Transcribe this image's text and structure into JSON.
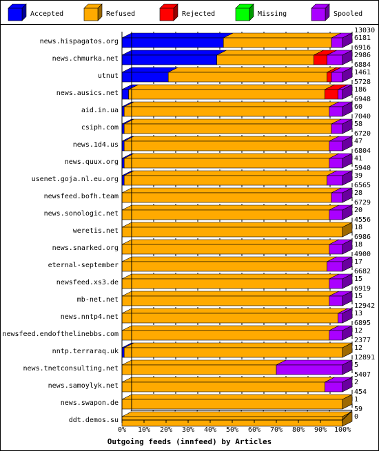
{
  "chart_data": {
    "type": "bar",
    "stacked": true,
    "orientation": "horizontal",
    "style": "3d",
    "xlabel": "Outgoing feeds (innfeed) by Articles",
    "x_ticks": [
      "0%",
      "10%",
      "20%",
      "30%",
      "40%",
      "50%",
      "60%",
      "70%",
      "80%",
      "90%",
      "100%"
    ],
    "legend_position": "top",
    "series": [
      {
        "name": "Accepted",
        "color": "#0000ff"
      },
      {
        "name": "Refused",
        "color": "#ffaa00"
      },
      {
        "name": "Rejected",
        "color": "#ff0000"
      },
      {
        "name": "Missing",
        "color": "#00ff00"
      },
      {
        "name": "Spooled",
        "color": "#aa00ff"
      }
    ],
    "rows": [
      {
        "name": "news.hispagatos.org",
        "offered": "13030",
        "accepted_count": "6181",
        "segments": [
          0.46,
          0.49,
          0.0,
          0.0,
          0.05
        ]
      },
      {
        "name": "news.chmurka.net",
        "offered": "6916",
        "accepted_count": "2986",
        "segments": [
          0.43,
          0.44,
          0.06,
          0.0,
          0.07
        ]
      },
      {
        "name": "utnut",
        "offered": "6884",
        "accepted_count": "1461",
        "segments": [
          0.21,
          0.72,
          0.02,
          0.0,
          0.05
        ]
      },
      {
        "name": "news.ausics.net",
        "offered": "5728",
        "accepted_count": "186",
        "segments": [
          0.03,
          0.89,
          0.06,
          0.0,
          0.02
        ]
      },
      {
        "name": "aid.in.ua",
        "offered": "6948",
        "accepted_count": "60",
        "segments": [
          0.01,
          0.93,
          0.0,
          0.0,
          0.06
        ]
      },
      {
        "name": "csiph.com",
        "offered": "7040",
        "accepted_count": "58",
        "segments": [
          0.01,
          0.94,
          0.0,
          0.0,
          0.05
        ]
      },
      {
        "name": "news.1d4.us",
        "offered": "6720",
        "accepted_count": "47",
        "segments": [
          0.01,
          0.93,
          0.0,
          0.0,
          0.06
        ]
      },
      {
        "name": "news.quux.org",
        "offered": "6804",
        "accepted_count": "41",
        "segments": [
          0.01,
          0.93,
          0.0,
          0.0,
          0.06
        ]
      },
      {
        "name": "usenet.goja.nl.eu.org",
        "offered": "5940",
        "accepted_count": "39",
        "segments": [
          0.01,
          0.92,
          0.0,
          0.0,
          0.07
        ]
      },
      {
        "name": "newsfeed.bofh.team",
        "offered": "6565",
        "accepted_count": "28",
        "segments": [
          0.0,
          0.95,
          0.0,
          0.0,
          0.05
        ]
      },
      {
        "name": "news.sonologic.net",
        "offered": "6729",
        "accepted_count": "20",
        "segments": [
          0.0,
          0.94,
          0.0,
          0.0,
          0.06
        ]
      },
      {
        "name": "weretis.net",
        "offered": "4556",
        "accepted_count": "18",
        "segments": [
          0.0,
          1.0,
          0.0,
          0.0,
          0.0
        ]
      },
      {
        "name": "news.snarked.org",
        "offered": "6986",
        "accepted_count": "18",
        "segments": [
          0.0,
          0.94,
          0.0,
          0.0,
          0.06
        ]
      },
      {
        "name": "eternal-september",
        "offered": "4900",
        "accepted_count": "17",
        "segments": [
          0.0,
          0.93,
          0.0,
          0.0,
          0.07
        ]
      },
      {
        "name": "newsfeed.xs3.de",
        "offered": "6682",
        "accepted_count": "15",
        "segments": [
          0.0,
          0.94,
          0.0,
          0.0,
          0.06
        ]
      },
      {
        "name": "mb-net.net",
        "offered": "6919",
        "accepted_count": "15",
        "segments": [
          0.0,
          0.94,
          0.0,
          0.0,
          0.06
        ]
      },
      {
        "name": "news.nntp4.net",
        "offered": "12942",
        "accepted_count": "13",
        "segments": [
          0.0,
          0.98,
          0.0,
          0.0,
          0.02
        ]
      },
      {
        "name": "newsfeed.endofthelinebbs.com",
        "offered": "6895",
        "accepted_count": "12",
        "segments": [
          0.0,
          0.94,
          0.0,
          0.0,
          0.06
        ]
      },
      {
        "name": "nntp.terraraq.uk",
        "offered": "2377",
        "accepted_count": "12",
        "segments": [
          0.01,
          0.99,
          0.0,
          0.0,
          0.0
        ]
      },
      {
        "name": "news.tnetconsulting.net",
        "offered": "12891",
        "accepted_count": "5",
        "segments": [
          0.0,
          0.7,
          0.0,
          0.0,
          0.3
        ]
      },
      {
        "name": "news.samoylyk.net",
        "offered": "5407",
        "accepted_count": "2",
        "segments": [
          0.0,
          0.92,
          0.0,
          0.0,
          0.08
        ]
      },
      {
        "name": "news.swapon.de",
        "offered": "454",
        "accepted_count": "1",
        "segments": [
          0.0,
          1.0,
          0.0,
          0.0,
          0.0
        ]
      },
      {
        "name": "ddt.demos.su",
        "offered": "59",
        "accepted_count": "0",
        "segments": [
          0.0,
          1.0,
          0.0,
          0.0,
          0.0
        ]
      }
    ]
  }
}
